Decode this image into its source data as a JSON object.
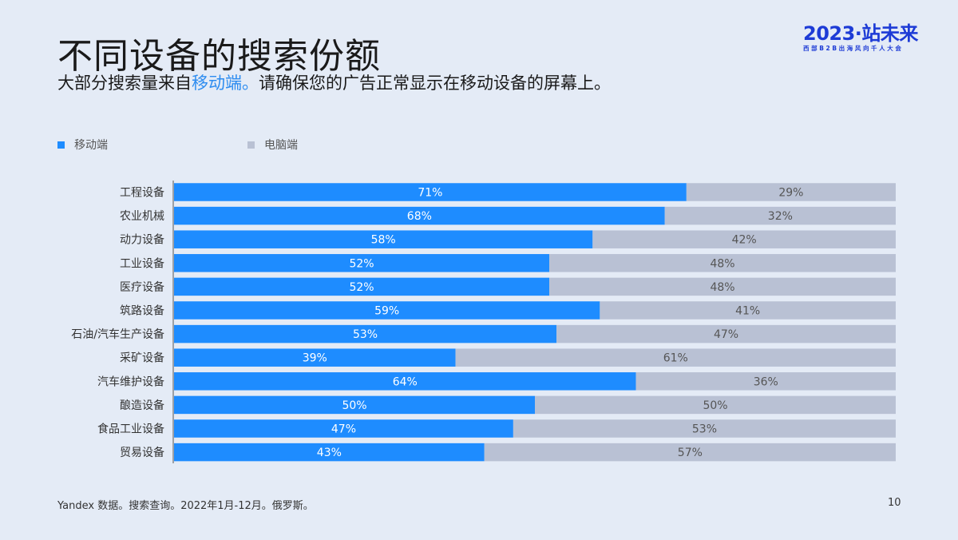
{
  "title": "不同设备的搜索份额",
  "subtitle": {
    "before": "大部分搜索量来自",
    "highlight": "移动端。",
    "after": "请确保您的广告正常显示在移动设备的屏幕上。"
  },
  "logo": {
    "main": "2023·站未来",
    "tagline": "西部B2B出海风向千人大会"
  },
  "footer": "Yandex 数据。搜索查询。2022年1月-12月。俄罗斯。",
  "page_number": "10",
  "colors": {
    "mobile": "#1e8cff",
    "desktop": "#b9c1d4",
    "highlight": "#2d8cf0",
    "brand": "#1d3bd6"
  },
  "chart_data": {
    "type": "bar",
    "orientation": "horizontal",
    "stacked": true,
    "legend_position": "top-left",
    "grid": false,
    "xlim": [
      0,
      100
    ],
    "categories": [
      "工程设备",
      "农业机械",
      "动力设备",
      "工业设备",
      "医疗设备",
      "筑路设备",
      "石油/汽车生产设备",
      "采矿设备",
      "汽车维护设备",
      "酿造设备",
      "食品工业设备",
      "贸易设备"
    ],
    "series": [
      {
        "name": "移动端",
        "values": [
          71,
          68,
          58,
          52,
          52,
          59,
          53,
          39,
          64,
          50,
          47,
          43
        ],
        "labels": [
          "71%",
          "68%",
          "58%",
          "52%",
          "52%",
          "59%",
          "53%",
          "39%",
          "64%",
          "50%",
          "47%",
          "43%"
        ]
      },
      {
        "name": "电脑端",
        "values": [
          29,
          32,
          42,
          48,
          48,
          41,
          47,
          61,
          36,
          50,
          53,
          57
        ],
        "labels": [
          "29%",
          "32%",
          "42%",
          "48%",
          "48%",
          "41%",
          "47%",
          "61%",
          "36%",
          "50%",
          "53%",
          "57%"
        ]
      }
    ]
  }
}
